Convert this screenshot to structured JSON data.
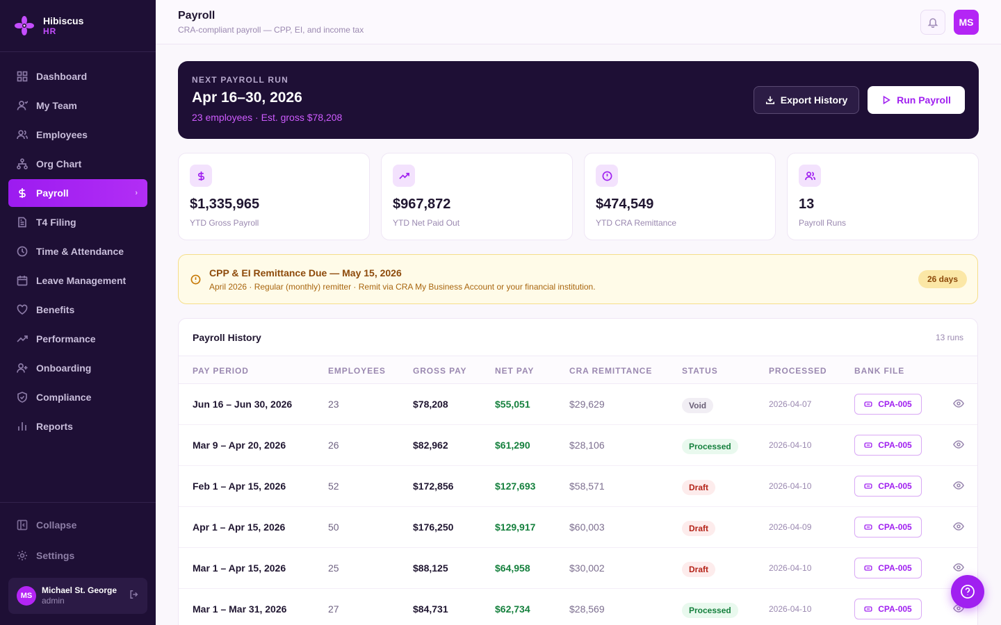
{
  "brand": {
    "name": "Hibiscus",
    "sub": "HR"
  },
  "nav": [
    {
      "label": "Dashboard",
      "icon": "dashboard-icon"
    },
    {
      "label": "My Team",
      "icon": "user-icon"
    },
    {
      "label": "Employees",
      "icon": "users-icon"
    },
    {
      "label": "Org Chart",
      "icon": "org-chart-icon"
    },
    {
      "label": "Payroll",
      "icon": "dollar-icon",
      "active": true
    },
    {
      "label": "T4 Filing",
      "icon": "document-icon"
    },
    {
      "label": "Time & Attendance",
      "icon": "clock-icon"
    },
    {
      "label": "Leave Management",
      "icon": "calendar-icon"
    },
    {
      "label": "Benefits",
      "icon": "heart-icon"
    },
    {
      "label": "Performance",
      "icon": "trending-icon"
    },
    {
      "label": "Onboarding",
      "icon": "user-plus-icon"
    },
    {
      "label": "Compliance",
      "icon": "shield-icon"
    },
    {
      "label": "Reports",
      "icon": "bar-chart-icon"
    }
  ],
  "sidebar_bottom": {
    "collapse": "Collapse",
    "settings": "Settings"
  },
  "user": {
    "initials": "MS",
    "name": "Michael St. George",
    "role": "admin"
  },
  "header": {
    "title": "Payroll",
    "subtitle": "CRA-compliant payroll — CPP, EI, and income tax",
    "avatar": "MS"
  },
  "banner": {
    "kicker": "NEXT PAYROLL RUN",
    "title": "Apr 16–30, 2026",
    "subtitle": "23 employees · Est. gross $78,208",
    "export_label": "Export History",
    "run_label": "Run Payroll"
  },
  "stats": [
    {
      "value": "$1,335,965",
      "label": "YTD Gross Payroll",
      "icon": "dollar-icon"
    },
    {
      "value": "$967,872",
      "label": "YTD Net Paid Out",
      "icon": "trending-up-icon"
    },
    {
      "value": "$474,549",
      "label": "YTD CRA Remittance",
      "icon": "alert-circle-icon"
    },
    {
      "value": "13",
      "label": "Payroll Runs",
      "icon": "users-icon"
    }
  ],
  "alert": {
    "title": "CPP & EI Remittance Due — May 15, 2026",
    "subtitle": "April 2026 · Regular (monthly) remitter · Remit via CRA My Business Account or your financial institution.",
    "badge": "26 days"
  },
  "history": {
    "title": "Payroll History",
    "count": "13 runs",
    "columns": [
      "PAY PERIOD",
      "EMPLOYEES",
      "GROSS PAY",
      "NET PAY",
      "CRA REMITTANCE",
      "STATUS",
      "PROCESSED",
      "BANK FILE"
    ],
    "rows": [
      {
        "period": "Jun 16 – Jun 30, 2026",
        "employees": "23",
        "gross": "$78,208",
        "net": "$55,051",
        "cra": "$29,629",
        "status": "Void",
        "processed": "2026-04-07",
        "bank": "CPA-005"
      },
      {
        "period": "Mar 9 – Apr 20, 2026",
        "employees": "26",
        "gross": "$82,962",
        "net": "$61,290",
        "cra": "$28,106",
        "status": "Processed",
        "processed": "2026-04-10",
        "bank": "CPA-005"
      },
      {
        "period": "Feb 1 – Apr 15, 2026",
        "employees": "52",
        "gross": "$172,856",
        "net": "$127,693",
        "cra": "$58,571",
        "status": "Draft",
        "processed": "2026-04-10",
        "bank": "CPA-005"
      },
      {
        "period": "Apr 1 – Apr 15, 2026",
        "employees": "50",
        "gross": "$176,250",
        "net": "$129,917",
        "cra": "$60,003",
        "status": "Draft",
        "processed": "2026-04-09",
        "bank": "CPA-005"
      },
      {
        "period": "Mar 1 – Apr 15, 2026",
        "employees": "25",
        "gross": "$88,125",
        "net": "$64,958",
        "cra": "$30,002",
        "status": "Draft",
        "processed": "2026-04-10",
        "bank": "CPA-005"
      },
      {
        "period": "Mar 1 – Mar 31, 2026",
        "employees": "27",
        "gross": "$84,731",
        "net": "$62,734",
        "cra": "$28,569",
        "status": "Processed",
        "processed": "2026-04-10",
        "bank": "CPA-005"
      }
    ]
  },
  "colors": {
    "accent": "#a020f0",
    "sidebar_bg": "#1e0f35",
    "success": "#15803d",
    "danger": "#b42318",
    "warning": "#8d4a0b"
  }
}
